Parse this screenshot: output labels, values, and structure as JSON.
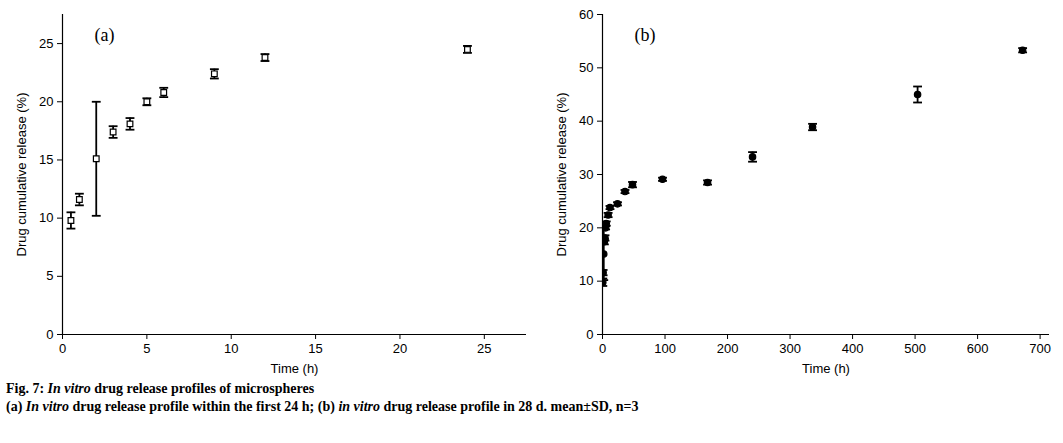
{
  "chart_data": [
    {
      "type": "scatter",
      "annotation": "(a)",
      "x_label": "Time (h)",
      "y_label": "Drug cumulative release (%)",
      "x": [
        0.5,
        1,
        2,
        3,
        4,
        5,
        6,
        9,
        12,
        24
      ],
      "values": [
        9.8,
        11.6,
        15.1,
        17.4,
        18.1,
        20.0,
        20.8,
        22.4,
        23.8,
        24.5
      ],
      "error": [
        0.7,
        0.5,
        4.9,
        0.5,
        0.5,
        0.3,
        0.4,
        0.4,
        0.3,
        0.3
      ],
      "color": "#000000",
      "marker": "square",
      "xlim": [
        0,
        27.5
      ],
      "xticks": [
        0,
        5,
        10,
        15,
        20,
        25
      ],
      "ylim": [
        0,
        27.5
      ],
      "yticks": [
        0,
        5,
        10,
        15,
        20,
        25
      ],
      "grid": false
    },
    {
      "type": "scatter",
      "annotation": "(b)",
      "x_label": "Time (h)",
      "y_label": "Drug cumulative release (%)",
      "x": [
        0.5,
        1,
        2,
        3,
        4,
        5,
        6,
        9,
        12,
        24,
        36,
        48,
        96,
        168,
        240,
        336,
        504,
        672
      ],
      "values": [
        9.8,
        11.6,
        15.1,
        17.4,
        18.1,
        20.0,
        20.8,
        22.4,
        23.8,
        24.5,
        26.8,
        28.1,
        29.1,
        28.5,
        33.3,
        38.9,
        45.0,
        53.3
      ],
      "error": [
        0.7,
        0.5,
        4.9,
        0.5,
        0.5,
        0.3,
        0.4,
        0.4,
        0.3,
        0.3,
        0.3,
        0.5,
        0.3,
        0.4,
        0.9,
        0.6,
        1.5,
        0.4
      ],
      "color": "#000000",
      "marker": "circle",
      "xlim": [
        0,
        715
      ],
      "xticks": [
        0,
        100,
        200,
        300,
        400,
        500,
        600,
        700
      ],
      "ylim": [
        0,
        60
      ],
      "yticks": [
        0,
        10,
        20,
        30,
        40,
        50,
        60
      ],
      "grid": false
    }
  ],
  "caption": {
    "title": "Fig. 7: In vitro drug release profiles of microspheres",
    "text": "(a) In vitro drug release profile within the first 24 h; (b) in vitro drug release profile in 28 d. mean±SD, n=3"
  }
}
